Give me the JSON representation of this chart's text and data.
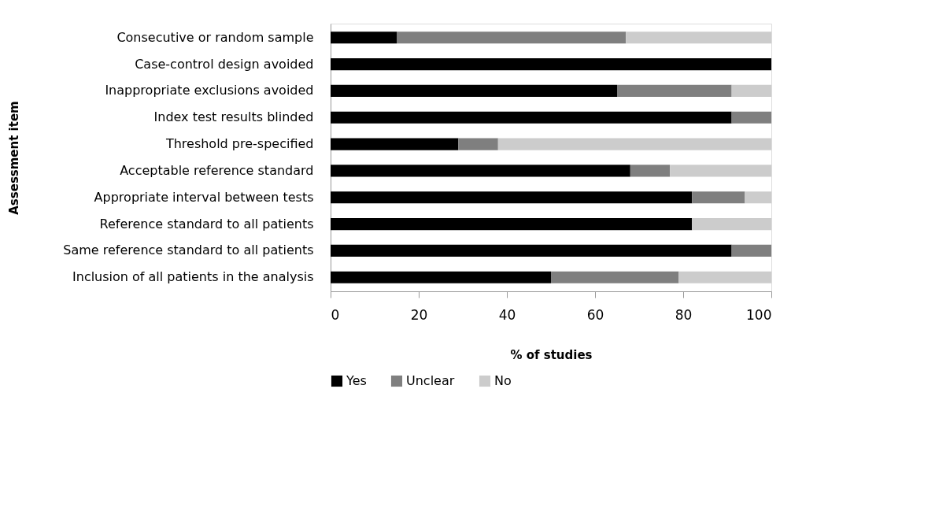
{
  "chart_data": {
    "type": "bar",
    "orientation": "horizontal",
    "stacked": true,
    "xlabel": "% of studies",
    "ylabel": "Assessment item",
    "categories": [
      "Consecutive or random sample",
      "Case-control design avoided",
      "Inappropriate exclusions avoided",
      "Index test results blinded",
      "Threshold pre-specified",
      "Acceptable reference standard ",
      "Appropriate interval between tests",
      "Reference standard to all patients",
      "Same reference standard to all patients",
      "Inclusion of all patients in the analysis"
    ],
    "series": [
      {
        "name": "Yes",
        "color": "#000000",
        "values": [
          15,
          100,
          65,
          91,
          29,
          68,
          82,
          82,
          91,
          50
        ]
      },
      {
        "name": "Unclear",
        "color": "#7f7f7f",
        "values": [
          52,
          0,
          26,
          9,
          9,
          9,
          12,
          0,
          9,
          29
        ]
      },
      {
        "name": "No",
        "color": "#cccccc",
        "values": [
          33,
          0,
          9,
          0,
          62,
          23,
          6,
          18,
          0,
          21
        ]
      }
    ],
    "xlim": [
      0,
      100
    ],
    "xticks": [
      0,
      20,
      40,
      60,
      80,
      100
    ],
    "grid": false,
    "legend": "bottom"
  }
}
